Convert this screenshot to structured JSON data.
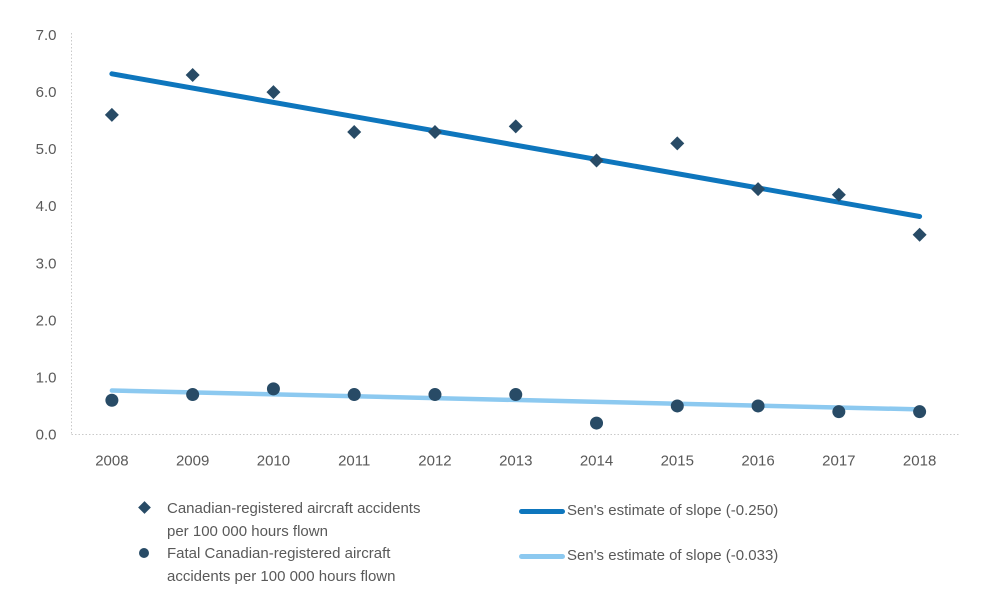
{
  "chart_data": {
    "type": "scatter",
    "title": "",
    "xlabel": "",
    "ylabel": "",
    "grid": false,
    "legend_position": "bottom",
    "x": [
      2008,
      2009,
      2010,
      2011,
      2012,
      2013,
      2014,
      2015,
      2016,
      2017,
      2018
    ],
    "x_labels": [
      "2008",
      "2009",
      "2010",
      "2011",
      "2012",
      "2013",
      "2014",
      "2015",
      "2016",
      "2017",
      "2018"
    ],
    "ylim": [
      0,
      7
    ],
    "ytick_step": 1,
    "ytick_labels": [
      "0.0",
      "1.0",
      "2.0",
      "3.0",
      "4.0",
      "5.0",
      "6.0",
      "7.0"
    ],
    "series": [
      {
        "name": "Canadian-registered aircraft accidents per 100 000 hours flown",
        "type": "scatter",
        "marker": "diamond",
        "color": "#284B66",
        "values": [
          5.6,
          6.3,
          6.0,
          5.3,
          5.3,
          5.4,
          4.8,
          5.1,
          4.3,
          4.2,
          3.5
        ]
      },
      {
        "name": "Fatal Canadian-registered aircraft accidents per 100 000 hours flown",
        "type": "scatter",
        "marker": "circle",
        "color": "#284B66",
        "values": [
          0.6,
          0.7,
          0.8,
          0.7,
          0.7,
          0.7,
          0.2,
          0.5,
          0.5,
          0.4,
          0.4
        ]
      },
      {
        "name": "Sen's estimate of slope (-0.250)",
        "type": "trendline",
        "color": "#0E76BD",
        "slope": -0.25,
        "endpoints": [
          6.32,
          3.82
        ],
        "width": 5
      },
      {
        "name": "Sen's estimate of slope (-0.033)",
        "type": "trendline",
        "color": "#8CC9F0",
        "slope": -0.033,
        "endpoints": [
          0.77,
          0.44
        ],
        "width": 4.5
      }
    ]
  },
  "legend": {
    "items": [
      {
        "marker": "diamond",
        "color": "#284B66",
        "line1": "Canadian-registered aircraft accidents",
        "line2": "per 100 000 hours flown"
      },
      {
        "marker": "circle",
        "color": "#284B66",
        "line1": "Fatal Canadian-registered aircraft",
        "line2": "accidents per 100 000 hours flown"
      },
      {
        "marker": "line",
        "color": "#0E76BD",
        "line1": "Sen's estimate of slope (-0.250)",
        "line2": ""
      },
      {
        "marker": "line",
        "color": "#8CC9F0",
        "line1": "Sen's estimate of slope (-0.033)",
        "line2": ""
      }
    ]
  },
  "colors": {
    "marker": "#284B66",
    "sen_dark": "#0E76BD",
    "sen_light": "#8CC9F0",
    "axis_text": "#595959",
    "axis_line": "#C9C9C9",
    "background": "#FFFFFF"
  }
}
